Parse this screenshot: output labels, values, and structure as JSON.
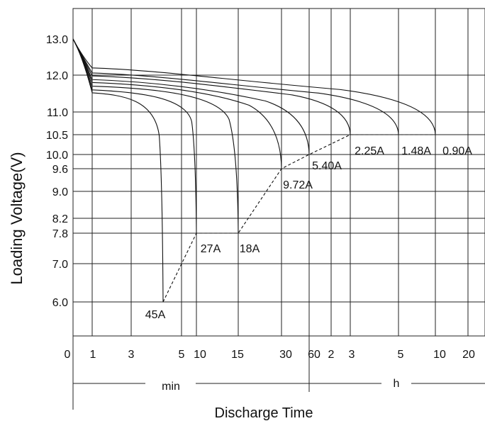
{
  "chart_data": {
    "type": "line",
    "title": "",
    "ylabel": "Loading  Voltage(V)",
    "xlabel": "Discharge Time",
    "y_scale": "categorical-ticks",
    "y_ticks": [
      "13.0",
      "12.0",
      "11.0",
      "10.5",
      "10.0",
      "9.6",
      "9.0",
      "8.2",
      "7.8",
      "7.0",
      "6.0"
    ],
    "x_ticks": [
      "0",
      "1",
      "3",
      "5",
      "10",
      "15",
      "30",
      "60",
      "2",
      "3",
      "5",
      "10",
      "20"
    ],
    "x_units": {
      "min": "min",
      "h": "h"
    },
    "grid": true,
    "series": [
      {
        "name": "45A",
        "end_time": "7 min",
        "end_voltage": 6.0
      },
      {
        "name": "27A",
        "end_time": "10 min",
        "end_voltage": 7.8
      },
      {
        "name": "18A",
        "end_time": "15 min",
        "end_voltage": 7.8
      },
      {
        "name": "9.72A",
        "end_time": "30 min",
        "end_voltage": 9.6
      },
      {
        "name": "5.40A",
        "end_time": "60 min",
        "end_voltage": 10.0
      },
      {
        "name": "2.25A",
        "end_time": "3 h",
        "end_voltage": 10.5
      },
      {
        "name": "1.48A",
        "end_time": "5 h",
        "end_voltage": 10.5
      },
      {
        "name": "0.90A",
        "end_time": "10 h",
        "end_voltage": 10.5
      }
    ]
  }
}
